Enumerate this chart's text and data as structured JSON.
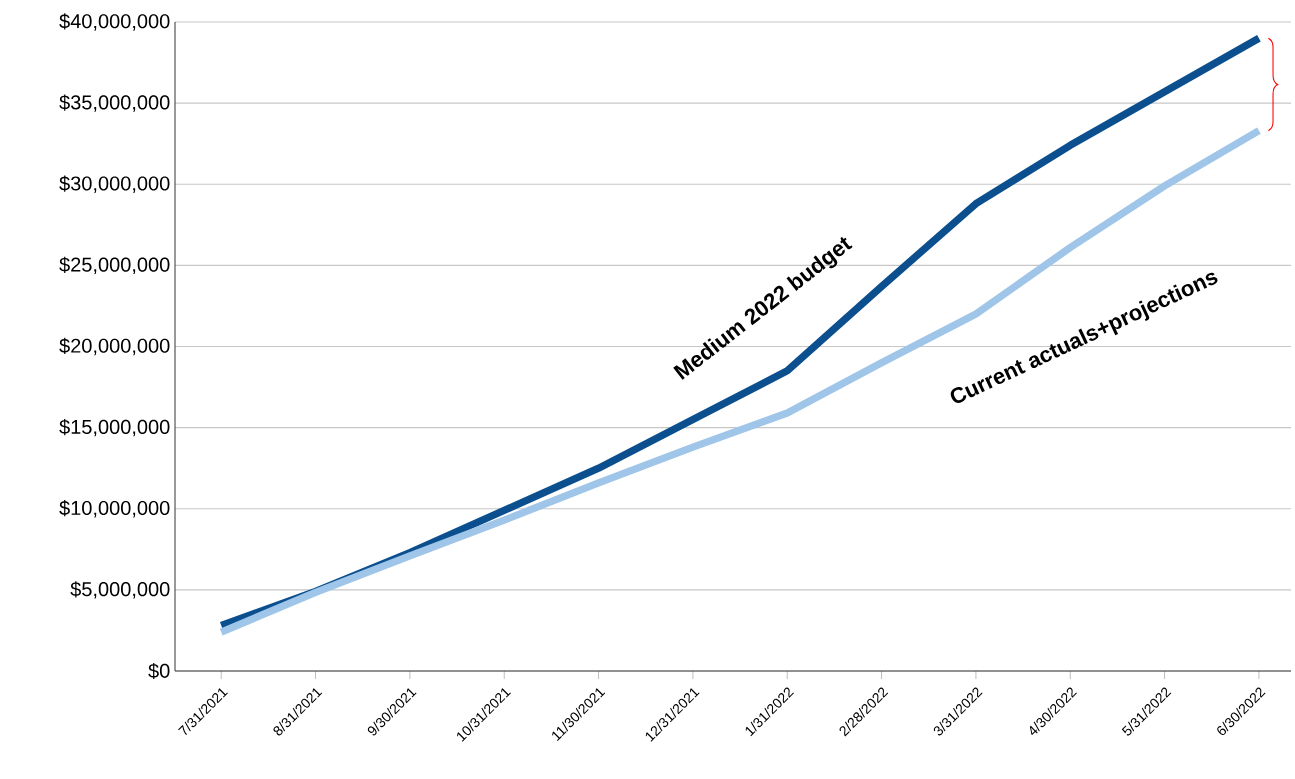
{
  "chart_data": {
    "type": "line",
    "categories": [
      "7/31/2021",
      "8/31/2021",
      "9/30/2021",
      "10/31/2021",
      "11/30/2021",
      "12/31/2021",
      "1/31/2022",
      "2/28/2022",
      "3/31/2022",
      "4/30/2022",
      "5/31/2022",
      "6/30/2022"
    ],
    "series": [
      {
        "name": "Medium 2022 budget",
        "color": "#0b4f8f",
        "values": [
          2800000,
          4900000,
          7300000,
          9900000,
          12500000,
          15500000,
          18500000,
          23700000,
          28800000,
          32400000,
          35700000,
          39000000
        ]
      },
      {
        "name": "Current actuals+projections",
        "color": "#9fc5e8",
        "values": [
          2400000,
          4850000,
          7100000,
          9300000,
          11600000,
          13800000,
          15900000,
          19000000,
          22000000,
          26100000,
          29900000,
          33300000
        ]
      }
    ],
    "ylim": [
      0,
      40000000
    ],
    "yticks": [
      {
        "value": 0,
        "label": "$0"
      },
      {
        "value": 5000000,
        "label": "$5,000,000"
      },
      {
        "value": 10000000,
        "label": "$10,000,000"
      },
      {
        "value": 15000000,
        "label": "$15,000,000"
      },
      {
        "value": 20000000,
        "label": "$20,000,000"
      },
      {
        "value": 25000000,
        "label": "$25,000,000"
      },
      {
        "value": 30000000,
        "label": "$30,000,000"
      },
      {
        "value": 35000000,
        "label": "$35,000,000"
      },
      {
        "value": 40000000,
        "label": "$40,000,000"
      }
    ],
    "grid": "y",
    "legend": false,
    "marker": "none",
    "line_style": "solid"
  }
}
